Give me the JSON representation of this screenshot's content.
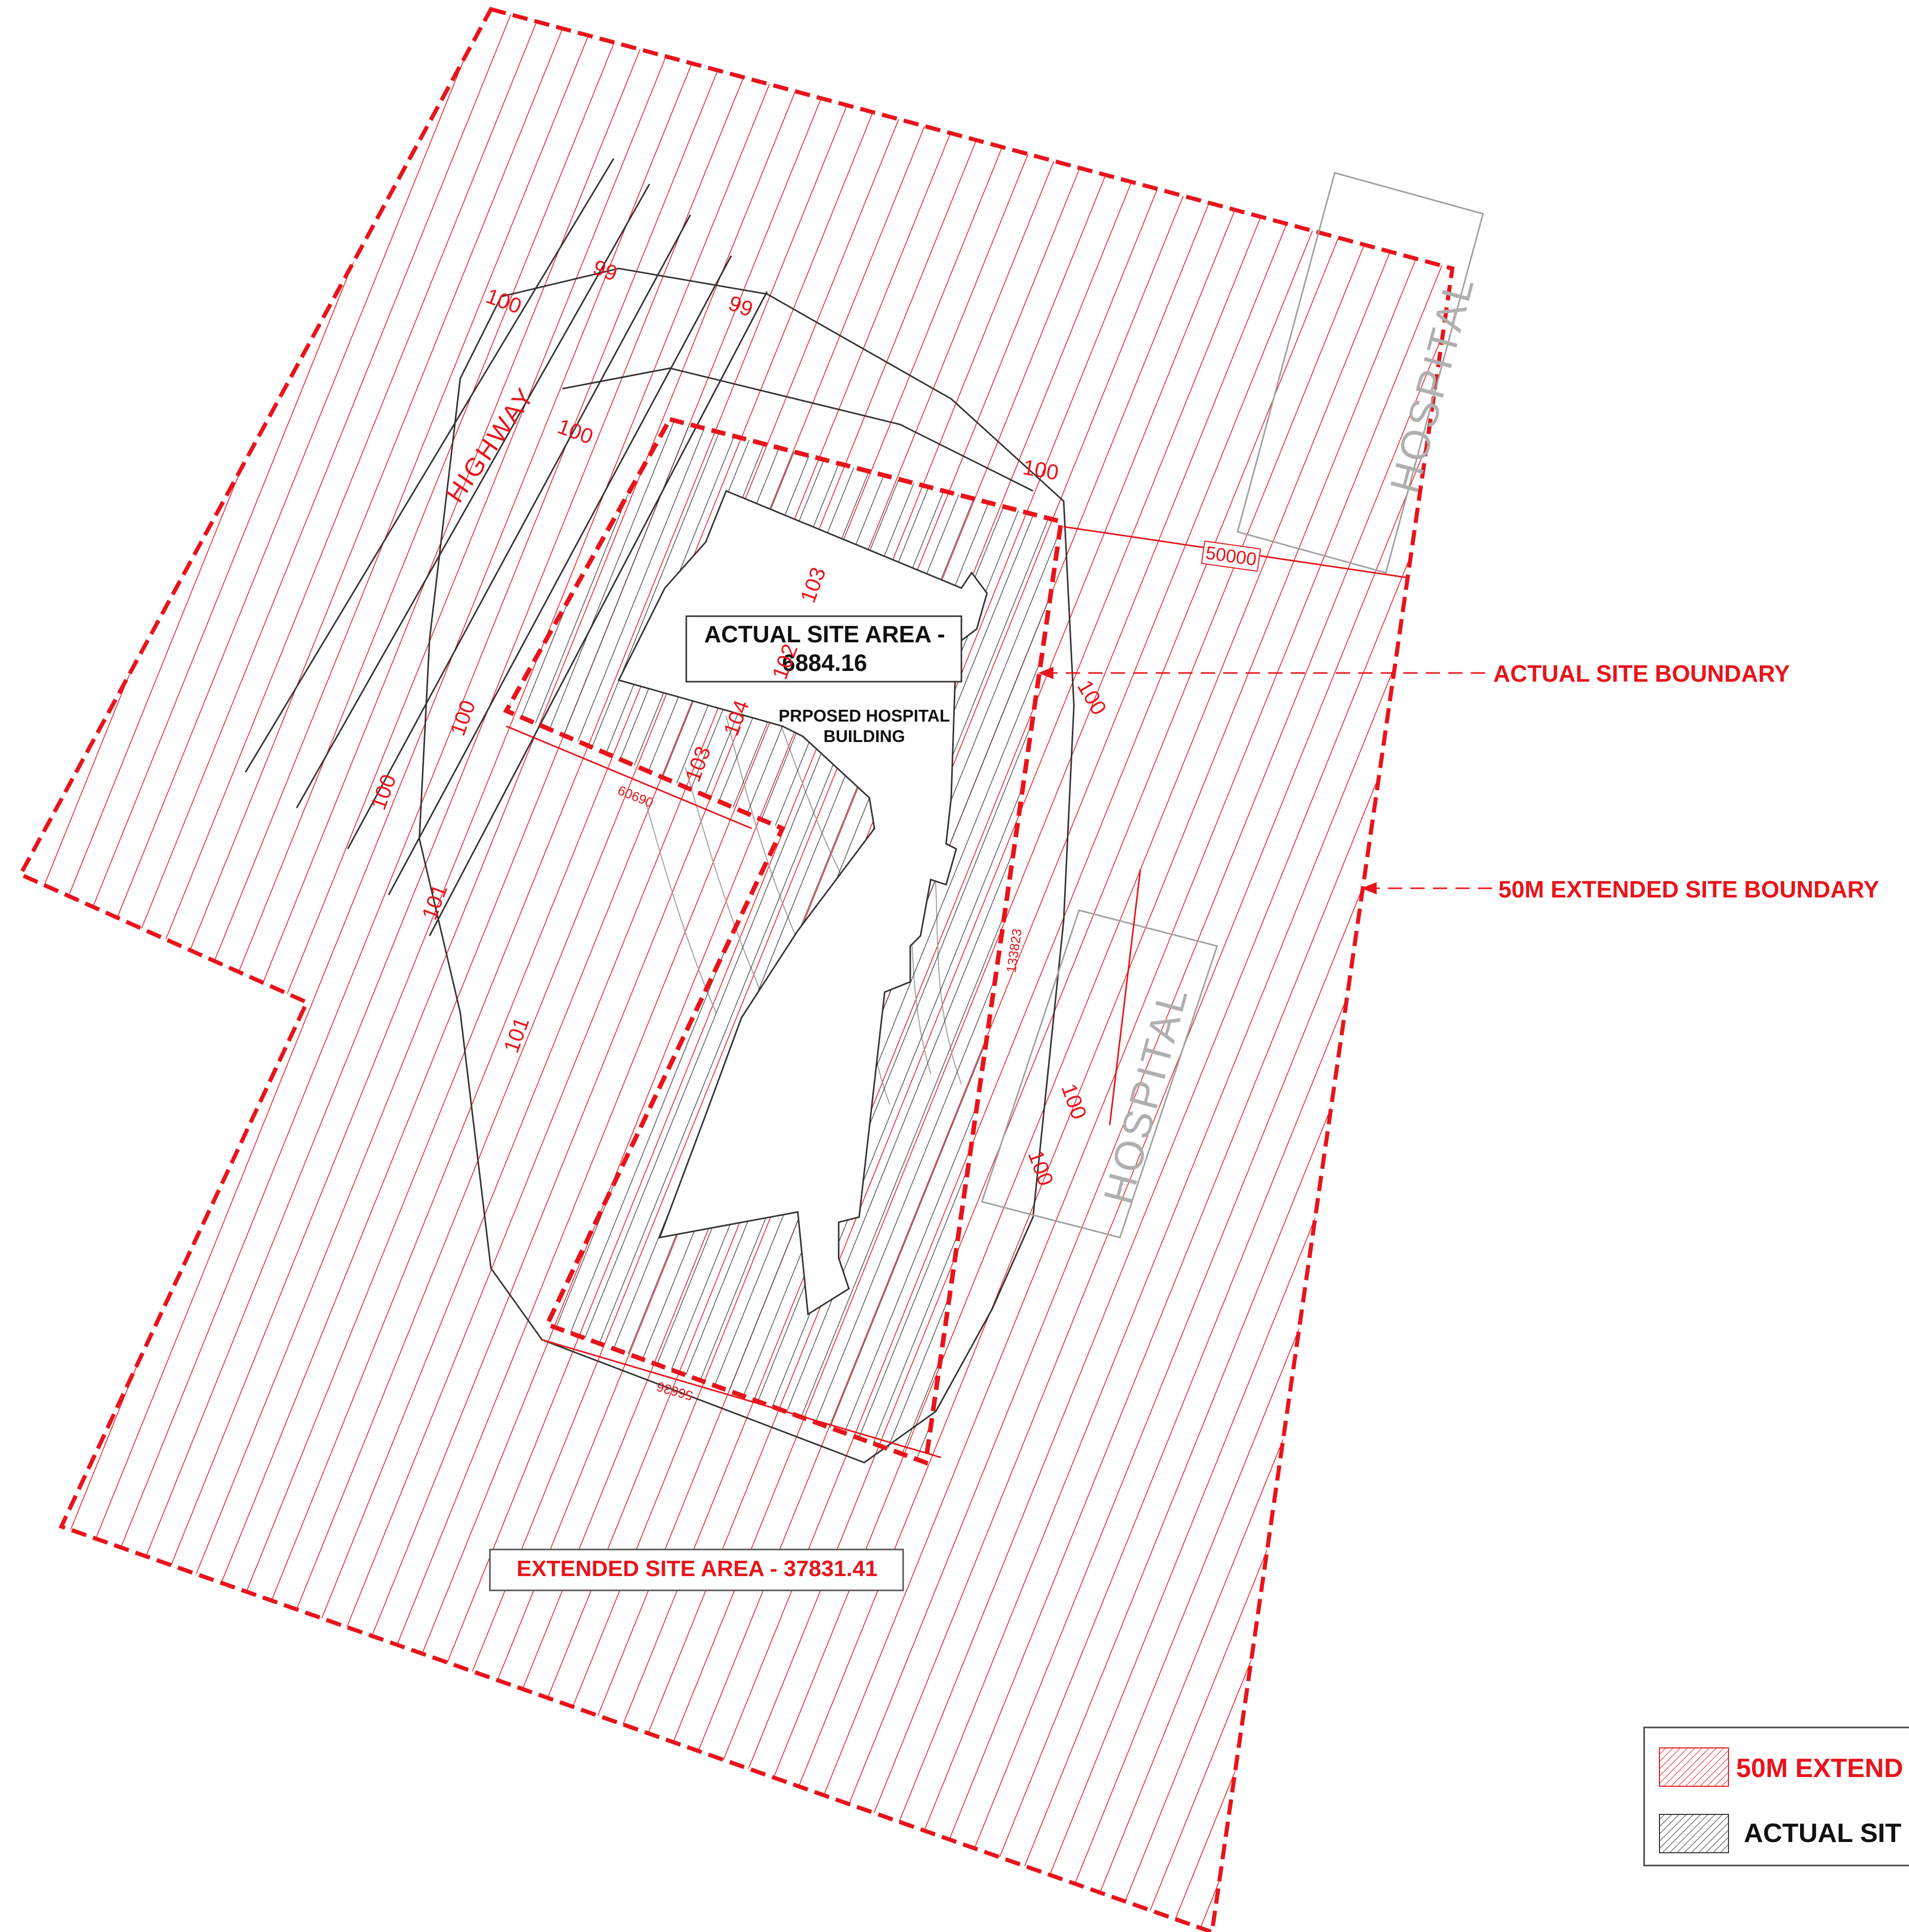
{
  "labels": {
    "actual_site_area_line1": "ACTUAL SITE AREA -",
    "actual_site_area_line2": "6884.16",
    "building_line1": "PRPOSED HOSPITAL",
    "building_line2": "BUILDING",
    "extended_site_area": "EXTENDED SITE AREA - 37831.41",
    "actual_site_boundary": "ACTUAL SITE BOUNDARY",
    "extended_boundary": "50M EXTENDED SITE BOUNDARY",
    "dimension_50000": "50000",
    "dimension_bottom": "56636",
    "dimension_left": "60690",
    "dimension_right": "133823",
    "highway": "HIGHWAY"
  },
  "contours": [
    "99",
    "99",
    "100",
    "100",
    "100",
    "100",
    "101",
    "101",
    "102",
    "103",
    "103",
    "104",
    "100",
    "100",
    "100",
    "100"
  ],
  "hospital_labels": [
    "HOSPITAL",
    "HOSPITAL"
  ],
  "legend": {
    "item1": "50M EXTEND",
    "item2": "ACTUAL SIT"
  },
  "colors": {
    "red": "#e8141b",
    "black": "#1a1a1a",
    "gray": "#a0a0a0"
  }
}
